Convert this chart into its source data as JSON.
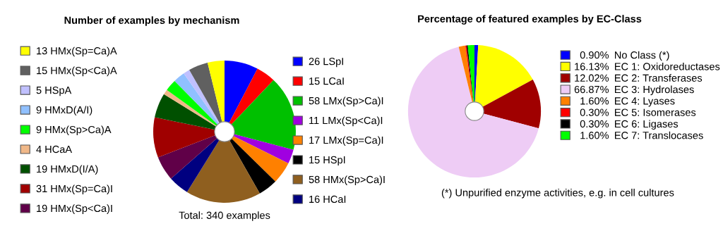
{
  "chart_data": [
    {
      "type": "pie",
      "title": "Number of examples by mechanism",
      "categories": [
        "LSpI",
        "LCaI",
        "LMx(Sp>Ca)I",
        "LMx(Sp<Ca)I",
        "LMx(Sp=Ca)I",
        "HSpI",
        "HMx(Sp>Ca)I",
        "HCaI",
        "HMx(Sp<Ca)I",
        "HMx(Sp=Ca)I",
        "HMxD(I/A)",
        "HCaA",
        "HMx(Sp>Ca)A",
        "HMxD(A/I)",
        "HSpA",
        "HMx(Sp<Ca)A",
        "HMx(Sp=Ca)A"
      ],
      "values": [
        26,
        15,
        58,
        11,
        17,
        15,
        58,
        16,
        19,
        31,
        19,
        4,
        9,
        9,
        5,
        15,
        13
      ],
      "colors": [
        "#0000ff",
        "#ff0000",
        "#00c000",
        "#a000e0",
        "#ff8000",
        "#000000",
        "#8f5f1f",
        "#000080",
        "#600048",
        "#a00000",
        "#005000",
        "#f0b888",
        "#00ff00",
        "#90c0ff",
        "#c0c0ff",
        "#606060",
        "#ffff00"
      ],
      "value_labels": [
        "26",
        "15",
        "58",
        "11",
        "17",
        "15",
        "58",
        "16",
        "19",
        "31",
        "19",
        "4",
        "9",
        "9",
        "5",
        "15",
        "13"
      ],
      "legend": "left",
      "annotations": [
        "Total: 340 examples"
      ]
    },
    {
      "type": "pie",
      "title": "Percentage of featured examples by EC-Class",
      "categories": [
        "No Class (*)",
        "EC 1: Oxidoreductases",
        "EC 2: Transferases",
        "EC 3: Hydrolases",
        "EC 4: Lyases",
        "EC 5: Isomerases",
        "EC 6: Ligases",
        "EC 7: Translocases"
      ],
      "values": [
        0.9,
        16.13,
        12.02,
        66.87,
        1.6,
        0.3,
        0.3,
        1.6
      ],
      "value_labels": [
        "0.90%",
        "16.13%",
        "12.02%",
        "66.87%",
        "1.60%",
        "0.30%",
        "0.30%",
        "1.60%"
      ],
      "colors": [
        "#0000ff",
        "#ffff00",
        "#a00000",
        "#eeccf5",
        "#ff8000",
        "#ff0000",
        "#000000",
        "#00ff00"
      ],
      "legend": "right",
      "annotations": [
        "(*) Unpurified enzyme activities, e.g. in cell cultures"
      ]
    }
  ]
}
